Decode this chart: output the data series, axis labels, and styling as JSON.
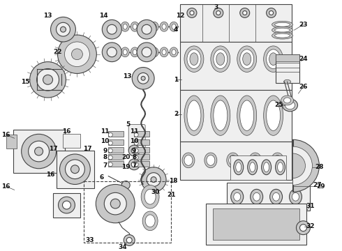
{
  "background_color": "#ffffff",
  "line_color": "#444444",
  "label_color": "#111111",
  "fig_width": 4.9,
  "fig_height": 3.6,
  "dpi": 100,
  "gray_fill": "#d8d8d8",
  "light_fill": "#efefef",
  "mid_fill": "#c8c8c8",
  "dark_fill": "#aaaaaa"
}
